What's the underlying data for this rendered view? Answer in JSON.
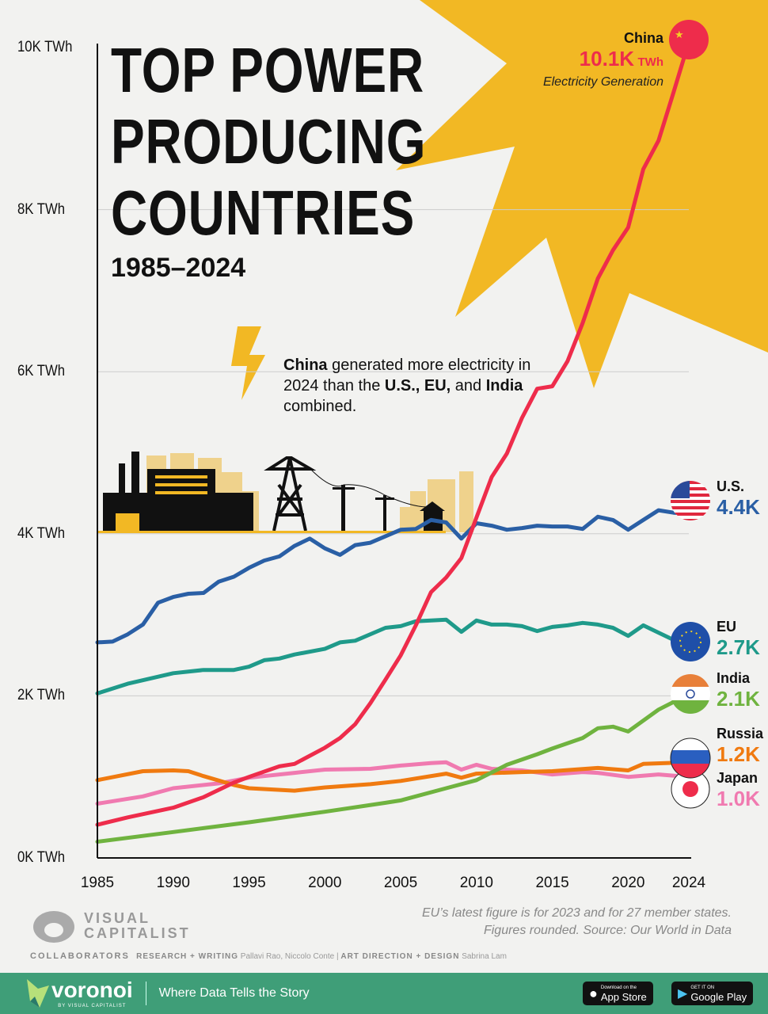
{
  "title_lines": [
    "TOP POWER",
    "PRODUCING",
    "COUNTRIES"
  ],
  "subtitle": "1985–2024",
  "annotation": {
    "b1": "China",
    "t1": " generated more electricity in 2024 than the ",
    "b2": "U.S., EU,",
    "t2": " and ",
    "b3": "India",
    "t3": " combined."
  },
  "china_callout": {
    "name": "China",
    "value": "10.1K",
    "unit": "TWh",
    "caption": "Electricity Generation"
  },
  "labels": [
    {
      "name": "U.S.",
      "value": "4.4K",
      "color": "#2a5fa5",
      "flag": "us-flag"
    },
    {
      "name": "EU",
      "value": "2.7K",
      "color": "#1f9a8a",
      "flag": "eu-flag"
    },
    {
      "name": "India",
      "value": "2.1K",
      "color": "#6fb33f",
      "flag": "india-flag"
    },
    {
      "name": "Russia",
      "value": "1.2K",
      "color": "#f07a10",
      "flag": "russia-flag"
    },
    {
      "name": "Japan",
      "value": "1.0K",
      "color": "#f07ab0",
      "flag": "japan-flag"
    }
  ],
  "chart_data": {
    "type": "line",
    "title": "TOP POWER PRODUCING COUNTRIES 1985–2024",
    "ylim": [
      0,
      10000
    ],
    "xlim": [
      1985,
      2024
    ],
    "y_ticks": [
      "0K TWh",
      "2K TWh",
      "4K TWh",
      "6K TWh",
      "8K TWh",
      "10K TWh"
    ],
    "y_tick_values": [
      0,
      2000,
      4000,
      6000,
      8000,
      10000
    ],
    "x_ticks": [
      "1985",
      "1990",
      "1995",
      "2000",
      "2005",
      "2010",
      "2015",
      "2020",
      "2024"
    ],
    "x_tick_values": [
      1985,
      1990,
      1995,
      2000,
      2005,
      2010,
      2015,
      2020,
      2024
    ],
    "unit": "TWh",
    "series": [
      {
        "name": "China",
        "color": "#ee2c4b",
        "x": [
          1985,
          1987,
          1990,
          1992,
          1994,
          1995,
          1997,
          1998,
          2000,
          2001,
          2002,
          2003,
          2004,
          2005,
          2006,
          2007,
          2008,
          2009,
          2010,
          2011,
          2012,
          2013,
          2014,
          2015,
          2016,
          2017,
          2018,
          2019,
          2020,
          2021,
          2022,
          2023,
          2024
        ],
        "y": [
          410,
          500,
          620,
          750,
          930,
          1000,
          1130,
          1160,
          1360,
          1480,
          1650,
          1910,
          2200,
          2500,
          2870,
          3280,
          3460,
          3700,
          4200,
          4700,
          4990,
          5430,
          5790,
          5820,
          6130,
          6600,
          7150,
          7500,
          7780,
          8500,
          8850,
          9450,
          10070
        ]
      },
      {
        "name": "U.S.",
        "color": "#2a5fa5",
        "x": [
          1985,
          1986,
          1987,
          1988,
          1989,
          1990,
          1991,
          1992,
          1993,
          1994,
          1995,
          1996,
          1997,
          1998,
          1999,
          2000,
          2001,
          2002,
          2003,
          2004,
          2005,
          2006,
          2007,
          2008,
          2009,
          2010,
          2011,
          2012,
          2013,
          2014,
          2015,
          2016,
          2017,
          2018,
          2019,
          2020,
          2021,
          2022,
          2023,
          2024
        ],
        "y": [
          2660,
          2670,
          2760,
          2880,
          3150,
          3220,
          3260,
          3270,
          3410,
          3470,
          3580,
          3670,
          3720,
          3850,
          3940,
          3820,
          3740,
          3860,
          3890,
          3970,
          4050,
          4060,
          4170,
          4140,
          3940,
          4130,
          4100,
          4050,
          4070,
          4100,
          4090,
          4090,
          4060,
          4210,
          4170,
          4050,
          4170,
          4290,
          4260,
          4250
        ]
      },
      {
        "name": "EU",
        "color": "#1f9a8a",
        "x": [
          1985,
          1987,
          1990,
          1992,
          1994,
          1995,
          1996,
          1997,
          1998,
          2000,
          2001,
          2002,
          2004,
          2005,
          2006,
          2007,
          2008,
          2009,
          2010,
          2011,
          2012,
          2013,
          2014,
          2015,
          2016,
          2017,
          2018,
          2019,
          2020,
          2021,
          2022,
          2023
        ],
        "y": [
          2030,
          2150,
          2280,
          2320,
          2320,
          2360,
          2440,
          2460,
          2510,
          2580,
          2660,
          2680,
          2840,
          2860,
          2920,
          2930,
          2940,
          2790,
          2930,
          2880,
          2880,
          2860,
          2800,
          2850,
          2870,
          2900,
          2880,
          2840,
          2740,
          2870,
          2780,
          2690
        ]
      },
      {
        "name": "India",
        "color": "#6fb33f",
        "x": [
          1985,
          1990,
          1995,
          2000,
          2004,
          2005,
          2008,
          2010,
          2012,
          2014,
          2015,
          2017,
          2018,
          2019,
          2020,
          2022,
          2024
        ],
        "y": [
          200,
          320,
          440,
          570,
          680,
          710,
          860,
          960,
          1150,
          1280,
          1350,
          1480,
          1600,
          1620,
          1560,
          1830,
          2020
        ]
      },
      {
        "name": "Russia",
        "color": "#f07a10",
        "x": [
          1985,
          1988,
          1990,
          1991,
          1992,
          1994,
          1995,
          1998,
          2000,
          2003,
          2005,
          2008,
          2009,
          2010,
          2013,
          2015,
          2018,
          2020,
          2021,
          2024
        ],
        "y": [
          960,
          1070,
          1080,
          1070,
          1010,
          900,
          860,
          830,
          870,
          910,
          950,
          1040,
          990,
          1040,
          1060,
          1070,
          1110,
          1080,
          1160,
          1180
        ]
      },
      {
        "name": "Japan",
        "color": "#f07ab0",
        "x": [
          1985,
          1988,
          1990,
          1993,
          1995,
          1998,
          2000,
          2003,
          2005,
          2007,
          2008,
          2009,
          2010,
          2011,
          2013,
          2015,
          2017,
          2018,
          2020,
          2022,
          2024
        ],
        "y": [
          670,
          760,
          860,
          920,
          990,
          1050,
          1090,
          1100,
          1140,
          1170,
          1180,
          1090,
          1150,
          1100,
          1080,
          1030,
          1060,
          1050,
          1000,
          1030,
          1000
        ]
      }
    ]
  },
  "footnote": [
    "EU’s latest figure is for 2023 and for 27 member states.",
    "Figures rounded. Source: Our World in Data"
  ],
  "brand": {
    "line1": "VISUAL",
    "line2": "CAPITALIST"
  },
  "credits": {
    "label": "COLLABORATORS",
    "r_label": "RESEARCH + WRITING",
    "r_names": "Pallavi Rao, Niccolo Conte",
    "sep": "|",
    "d_label": "ART DIRECTION + DESIGN",
    "d_names": "Sabrina Lam"
  },
  "footer": {
    "logo": "voronoi",
    "logo_sub": "BY VISUAL CAPITALIST",
    "tagline": "Where Data Tells the Story",
    "app_store": "App Store",
    "app_store_small": "Download on the",
    "google_play": "Google Play",
    "google_play_small": "GET IT ON",
    "bg": "#3f9e78"
  }
}
